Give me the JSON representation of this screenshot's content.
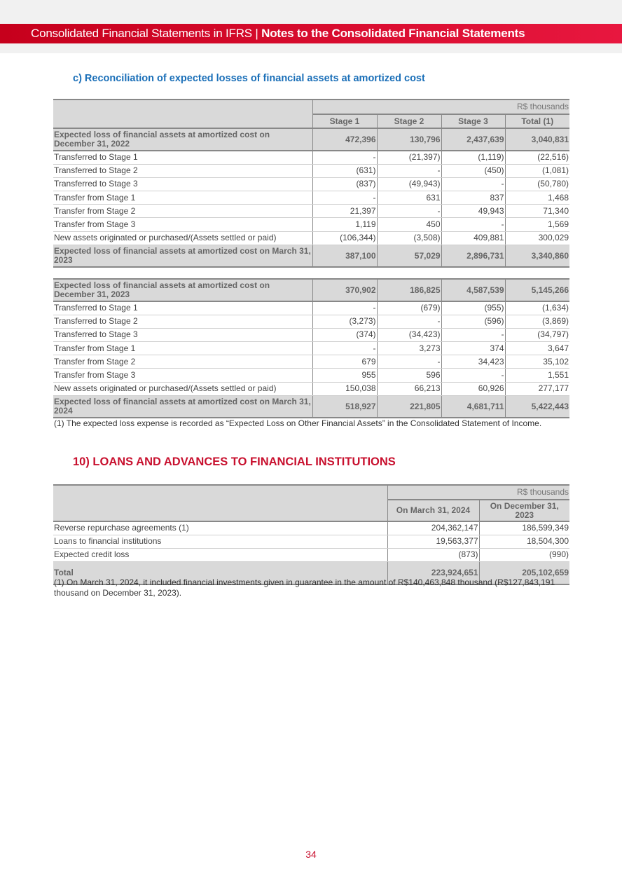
{
  "header": {
    "left": "Consolidated Financial Statements in IFRS | ",
    "right": "Notes to the Consolidated Financial Statements"
  },
  "subtitle": "c)   Reconciliation of expected losses of financial assets at amortized cost",
  "table1": {
    "unit": "R$ thousands",
    "columns": [
      "Stage 1",
      "Stage 2",
      "Stage 3",
      "Total (1)"
    ],
    "blocks": [
      {
        "rows": [
          {
            "bold": true,
            "label": "Expected loss of financial assets at amortized cost on December 31, 2022",
            "values": [
              "472,396",
              "130,796",
              "2,437,639",
              "3,040,831"
            ]
          },
          {
            "label": "Transferred to Stage 1",
            "values": [
              "-",
              "(21,397)",
              "(1,119)",
              "(22,516)"
            ]
          },
          {
            "label": "Transferred to Stage 2",
            "values": [
              "(631)",
              "-",
              "(450)",
              "(1,081)"
            ]
          },
          {
            "label": "Transferred to Stage 3",
            "values": [
              "(837)",
              "(49,943)",
              "-",
              "(50,780)"
            ]
          },
          {
            "label": "Transfer from Stage 1",
            "values": [
              "-",
              "631",
              "837",
              "1,468"
            ]
          },
          {
            "label": "Transfer from Stage 2",
            "values": [
              "21,397",
              "-",
              "49,943",
              "71,340"
            ]
          },
          {
            "label": "Transfer from Stage 3",
            "values": [
              "1,119",
              "450",
              "-",
              "1,569"
            ]
          },
          {
            "label": "New assets originated or purchased/(Assets settled or paid)",
            "values": [
              "(106,344)",
              "(3,508)",
              "409,881",
              "300,029"
            ]
          },
          {
            "bold": true,
            "label": "Expected loss of financial assets at amortized cost on March 31, 2023",
            "values": [
              "387,100",
              "57,029",
              "2,896,731",
              "3,340,860"
            ]
          }
        ]
      },
      {
        "rows": [
          {
            "bold": true,
            "label": "Expected loss of financial assets at amortized cost on December 31, 2023",
            "values": [
              "370,902",
              "186,825",
              "4,587,539",
              "5,145,266"
            ]
          },
          {
            "label": "Transferred to Stage 1",
            "values": [
              "-",
              "(679)",
              "(955)",
              "(1,634)"
            ]
          },
          {
            "label": "Transferred to Stage 2",
            "values": [
              "(3,273)",
              "-",
              "(596)",
              "(3,869)"
            ]
          },
          {
            "label": "Transferred to Stage 3",
            "values": [
              "(374)",
              "(34,423)",
              "-",
              "(34,797)"
            ]
          },
          {
            "label": "Transfer from Stage 1",
            "values": [
              "-",
              "3,273",
              "374",
              "3,647"
            ]
          },
          {
            "label": "Transfer from Stage 2",
            "values": [
              "679",
              "-",
              "34,423",
              "35,102"
            ]
          },
          {
            "label": "Transfer from Stage 3",
            "values": [
              "955",
              "596",
              "-",
              "1,551"
            ]
          },
          {
            "label": "New assets originated or purchased/(Assets settled or paid)",
            "values": [
              "150,038",
              "66,213",
              "60,926",
              "277,177"
            ]
          },
          {
            "bold": true,
            "label": "Expected loss of financial assets at amortized cost on March 31, 2024",
            "values": [
              "518,927",
              "221,805",
              "4,681,711",
              "5,422,443"
            ]
          }
        ]
      }
    ],
    "note": "(1) The expected loss expense is recorded as “Expected Loss on Other Financial Assets” in the Consolidated Statement of Income."
  },
  "section_title": "10) LOANS AND ADVANCES TO FINANCIAL INSTITUTIONS",
  "table2": {
    "unit": "R$ thousands",
    "columns": [
      "On March 31, 2024",
      "On December 31, 2023"
    ],
    "rows": [
      {
        "label": "Reverse repurchase agreements (1)",
        "values": [
          "204,362,147",
          "186,599,349"
        ]
      },
      {
        "label": "Loans to financial institutions",
        "values": [
          "19,563,377",
          "18,504,300"
        ]
      },
      {
        "label": "Expected credit loss",
        "values": [
          "(873)",
          "(990)"
        ]
      },
      {
        "bold": true,
        "label": "Total",
        "values": [
          "223,924,651",
          "205,102,659"
        ]
      }
    ],
    "note": "(1) On March 31, 2024, it included financial investments given in guarantee in the amount of R$140,463,848 thousand (R$127,843,191 thousand on December 31, 2023)."
  },
  "page_number": "34"
}
